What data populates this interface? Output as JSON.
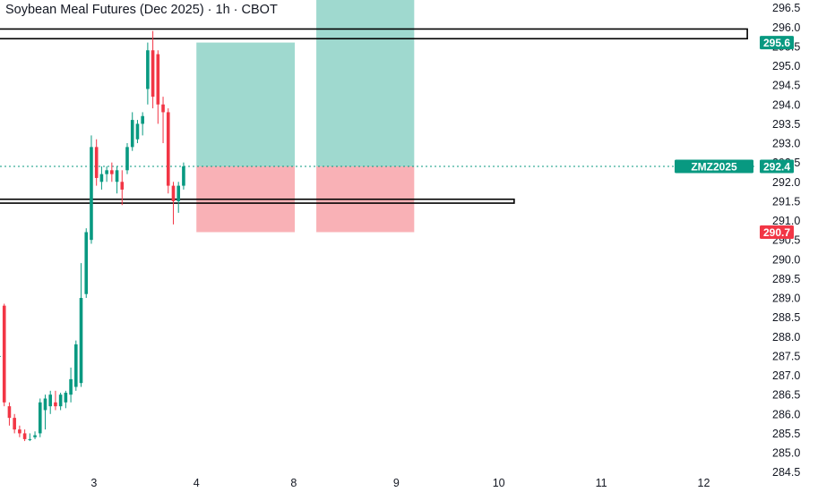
{
  "header": {
    "title": "Soybean Meal Futures (Dec 2025) · 1h · CBOT"
  },
  "colors": {
    "up": "#089981",
    "down": "#f23645",
    "profit_zone": "#9fd9cf",
    "loss_zone": "#f9b1b6",
    "last_price_line": "#089981",
    "axis_text": "#131722"
  },
  "chart_data": {
    "type": "candlestick",
    "title": "Soybean Meal Futures (Dec 2025) · 1h · CBOT",
    "symbol": "ZMZ2025",
    "timeframe": "1h",
    "exchange": "CBOT",
    "ylim": [
      284.4,
      296.7
    ],
    "y_ticks": [
      "284.5",
      "285.0",
      "285.5",
      "286.0",
      "286.5",
      "287.0",
      "287.5",
      "288.0",
      "288.5",
      "289.0",
      "289.5",
      "290.0",
      "290.5",
      "291.0",
      "291.5",
      "292.0",
      "292.5",
      "293.0",
      "293.5",
      "294.0",
      "294.5",
      "295.0",
      "295.5",
      "296.0",
      "296.5"
    ],
    "x_ticks": [
      "3",
      "4",
      "8",
      "9",
      "10",
      "11",
      "12"
    ],
    "x_tick_index": [
      18.5,
      38.5,
      57.5,
      77.5,
      97.5,
      117.5,
      137.5
    ],
    "candles": [
      {
        "o": 287.5,
        "h": 287.8,
        "l": 287.2,
        "c": 287.5
      },
      {
        "o": 288.8,
        "h": 288.85,
        "l": 286.2,
        "c": 286.3
      },
      {
        "o": 286.2,
        "h": 286.3,
        "l": 285.7,
        "c": 285.9
      },
      {
        "o": 285.9,
        "h": 286.0,
        "l": 285.5,
        "c": 285.6
      },
      {
        "o": 285.6,
        "h": 285.7,
        "l": 285.4,
        "c": 285.5
      },
      {
        "o": 285.5,
        "h": 285.6,
        "l": 285.3,
        "c": 285.35
      },
      {
        "o": 285.35,
        "h": 285.5,
        "l": 285.3,
        "c": 285.35
      },
      {
        "o": 285.4,
        "h": 285.55,
        "l": 285.35,
        "c": 285.45
      },
      {
        "o": 285.5,
        "h": 286.4,
        "l": 285.4,
        "c": 286.3
      },
      {
        "o": 286.1,
        "h": 286.5,
        "l": 285.6,
        "c": 286.4
      },
      {
        "o": 286.2,
        "h": 286.6,
        "l": 286.0,
        "c": 286.5
      },
      {
        "o": 286.3,
        "h": 286.6,
        "l": 286.1,
        "c": 286.2
      },
      {
        "o": 286.2,
        "h": 286.55,
        "l": 286.1,
        "c": 286.5
      },
      {
        "o": 286.3,
        "h": 286.6,
        "l": 286.15,
        "c": 286.55
      },
      {
        "o": 286.5,
        "h": 287.2,
        "l": 286.3,
        "c": 286.9
      },
      {
        "o": 286.7,
        "h": 287.9,
        "l": 286.6,
        "c": 287.8
      },
      {
        "o": 286.8,
        "h": 289.9,
        "l": 286.7,
        "c": 289.0
      },
      {
        "o": 289.1,
        "h": 290.8,
        "l": 289.0,
        "c": 290.7
      },
      {
        "o": 290.5,
        "h": 293.2,
        "l": 290.4,
        "c": 292.9
      },
      {
        "o": 292.9,
        "h": 293.1,
        "l": 291.9,
        "c": 292.1
      },
      {
        "o": 292.0,
        "h": 292.4,
        "l": 291.8,
        "c": 292.2
      },
      {
        "o": 292.2,
        "h": 292.4,
        "l": 292.0,
        "c": 292.3
      },
      {
        "o": 292.3,
        "h": 292.5,
        "l": 292.0,
        "c": 292.2
      },
      {
        "o": 292.0,
        "h": 292.4,
        "l": 291.7,
        "c": 292.3
      },
      {
        "o": 292.0,
        "h": 292.3,
        "l": 291.4,
        "c": 291.8
      },
      {
        "o": 292.3,
        "h": 293.0,
        "l": 292.2,
        "c": 292.9
      },
      {
        "o": 292.9,
        "h": 293.8,
        "l": 292.8,
        "c": 293.6
      },
      {
        "o": 293.1,
        "h": 293.6,
        "l": 293.0,
        "c": 293.5
      },
      {
        "o": 293.5,
        "h": 293.8,
        "l": 293.2,
        "c": 293.7
      },
      {
        "o": 294.4,
        "h": 295.6,
        "l": 294.0,
        "c": 295.4
      },
      {
        "o": 295.4,
        "h": 295.9,
        "l": 293.9,
        "c": 294.2
      },
      {
        "o": 295.3,
        "h": 295.4,
        "l": 293.5,
        "c": 294.0
      },
      {
        "o": 294.0,
        "h": 294.2,
        "l": 293.0,
        "c": 293.8
      },
      {
        "o": 293.8,
        "h": 293.9,
        "l": 291.7,
        "c": 291.9
      },
      {
        "o": 291.9,
        "h": 292.0,
        "l": 290.9,
        "c": 291.5
      },
      {
        "o": 291.5,
        "h": 292.0,
        "l": 291.2,
        "c": 291.9
      },
      {
        "o": 291.9,
        "h": 292.5,
        "l": 291.8,
        "c": 292.4
      }
    ],
    "zones": [
      {
        "side": "profit",
        "x_start": 38.5,
        "x_end": 57.7,
        "y_from": 292.4,
        "y_to": 295.6
      },
      {
        "side": "loss",
        "x_start": 38.5,
        "x_end": 57.7,
        "y_from": 290.7,
        "y_to": 292.4
      },
      {
        "side": "profit",
        "x_start": 61.9,
        "x_end": 81.0,
        "y_from": 292.4,
        "y_to": 296.7
      },
      {
        "side": "loss",
        "x_start": 61.9,
        "x_end": 81.0,
        "y_from": 290.7,
        "y_to": 292.4
      }
    ],
    "levels": [
      {
        "name": "upper-level-box",
        "y_from": 295.7,
        "y_to": 295.95,
        "x_start": -1,
        "x_end": 146
      },
      {
        "name": "lower-level-box",
        "y_from": 291.45,
        "y_to": 291.55,
        "x_start": -1,
        "x_end": 100.5
      }
    ],
    "last_price": 292.4,
    "price_tags": [
      {
        "value": 295.6,
        "label": "295.6",
        "color": "#089981"
      },
      {
        "value": 292.4,
        "label": "292.4",
        "color": "#089981"
      },
      {
        "value": 290.7,
        "label": "290.7",
        "color": "#f23645"
      }
    ],
    "symbol_tag": {
      "label": "ZMZ2025",
      "color": "#089981"
    }
  }
}
